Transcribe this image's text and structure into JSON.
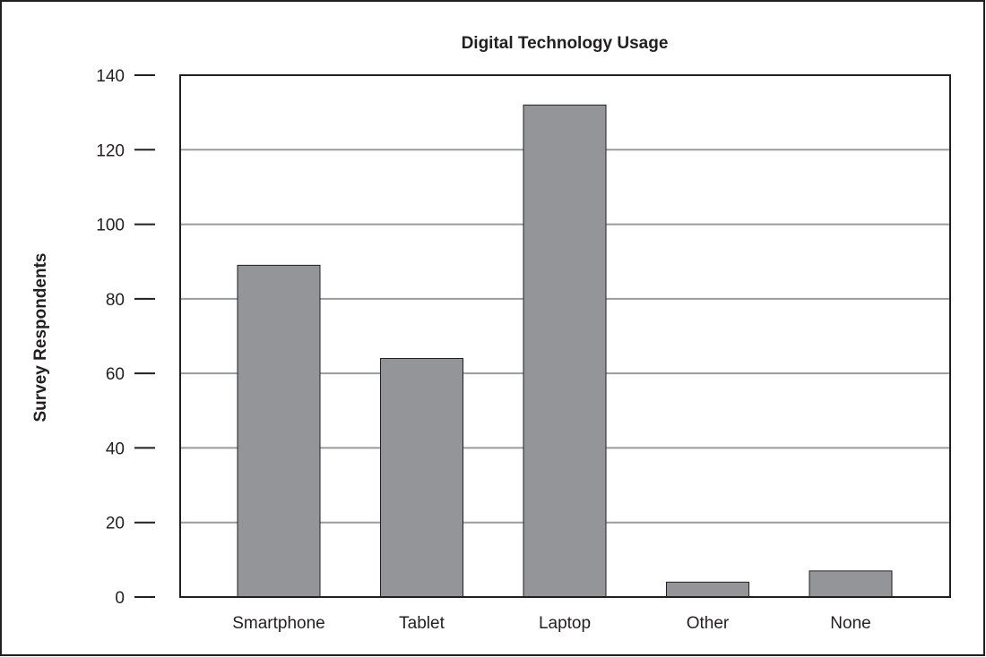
{
  "chart_data": {
    "type": "bar",
    "title": "Digital Technology Usage",
    "xlabel": "",
    "ylabel": "Survey Respondents",
    "categories": [
      "Smartphone",
      "Tablet",
      "Laptop",
      "Other",
      "None"
    ],
    "values": [
      89,
      64,
      132,
      4,
      7
    ],
    "ylim": [
      0,
      140
    ],
    "yticks": [
      "0",
      "20",
      "40",
      "60",
      "80",
      "100",
      "120",
      "140"
    ],
    "grid": true,
    "colors": {
      "bar": "#939598",
      "grid": "#9a9b9d",
      "line": "#231f20"
    }
  }
}
